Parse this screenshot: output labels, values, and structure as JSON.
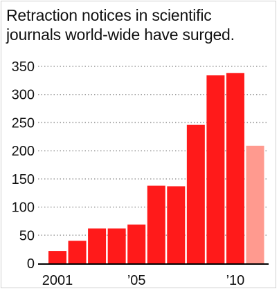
{
  "chart_data": {
    "type": "bar",
    "title_lines": [
      "Retraction notices in scientific",
      "journals world-wide have surged."
    ],
    "categories": [
      "2001",
      "2002",
      "2003",
      "2004",
      "2005",
      "2006",
      "2007",
      "2008",
      "2009",
      "2010",
      "2011"
    ],
    "values": [
      22,
      40,
      62,
      62,
      69,
      138,
      137,
      246,
      334,
      338,
      209
    ],
    "x_tick_labels": [
      {
        "category": "2001",
        "label": "2001"
      },
      {
        "category": "2005",
        "label": "’05"
      },
      {
        "category": "2010",
        "label": "’10"
      }
    ],
    "y_ticks": [
      0,
      50,
      100,
      150,
      200,
      250,
      300,
      350
    ],
    "ylim": [
      0,
      350
    ],
    "grid": true,
    "xlabel": "",
    "ylabel": "",
    "colors": {
      "bar": "#ff1a1a",
      "bar_highlight": "#ff9a8f",
      "grid": "#9a9a9a",
      "axis": "#000000"
    },
    "highlight_categories": [
      "2011"
    ]
  }
}
